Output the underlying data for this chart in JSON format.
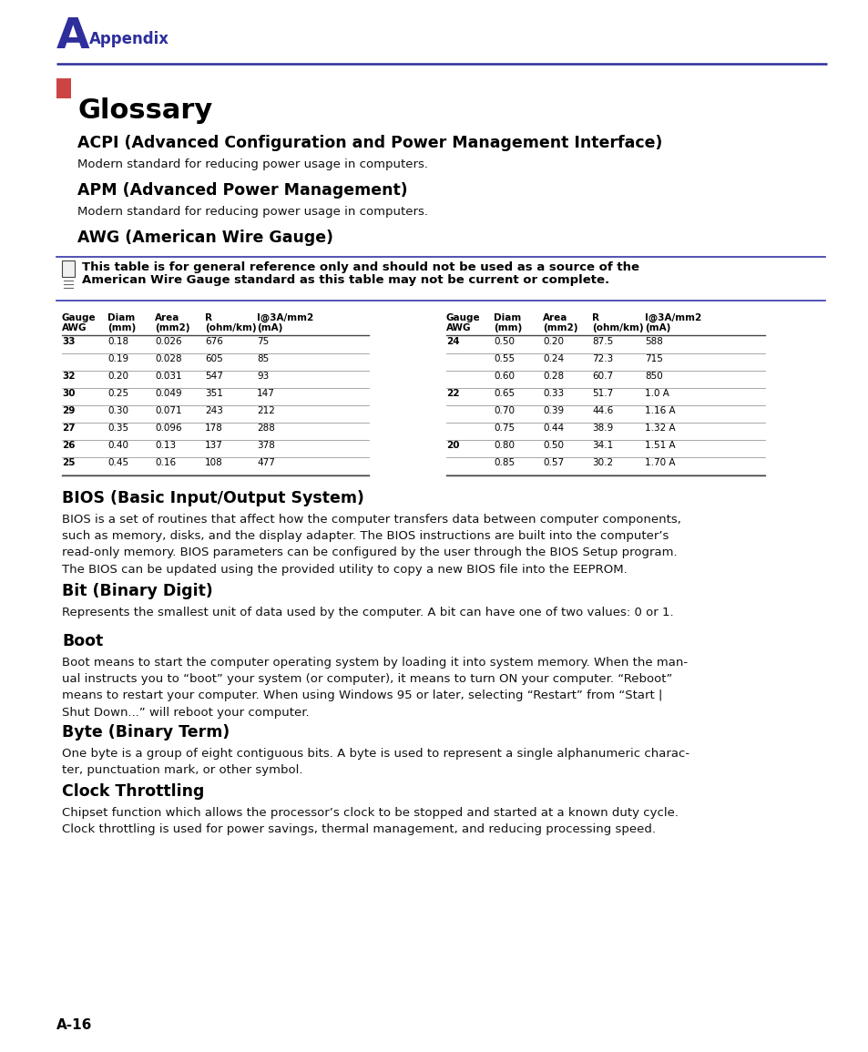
{
  "bg_color": "#ffffff",
  "header_letter": "A",
  "header_text": "Appendix",
  "header_color": "#2e2e9c",
  "glossary_title": "Glossary",
  "sections": [
    {
      "title": "ACPI (Advanced Configuration and Power Management Interface)",
      "body": "Modern standard for reducing power usage in computers."
    },
    {
      "title": "APM (Advanced Power Management)",
      "body": "Modern standard for reducing power usage in computers."
    },
    {
      "title": "AWG (American Wire Gauge)",
      "body": null
    }
  ],
  "note_line1": "This table is for general reference only and should not be used as a source of the",
  "note_line2": "American Wire Gauge standard as this table may not be current or complete.",
  "table_left_headers": [
    "Gauge",
    "Diam",
    "Area",
    "R",
    "I@3A/mm2"
  ],
  "table_left_headers2": [
    "AWG",
    "(mm)",
    "(mm2)",
    "(ohm/km)",
    "(mA)"
  ],
  "table_left_rows": [
    [
      "33",
      "0.18",
      "0.026",
      "676",
      "75"
    ],
    [
      "",
      "0.19",
      "0.028",
      "605",
      "85"
    ],
    [
      "32",
      "0.20",
      "0.031",
      "547",
      "93"
    ],
    [
      "30",
      "0.25",
      "0.049",
      "351",
      "147"
    ],
    [
      "29",
      "0.30",
      "0.071",
      "243",
      "212"
    ],
    [
      "27",
      "0.35",
      "0.096",
      "178",
      "288"
    ],
    [
      "26",
      "0.40",
      "0.13",
      "137",
      "378"
    ],
    [
      "25",
      "0.45",
      "0.16",
      "108",
      "477"
    ]
  ],
  "table_right_headers": [
    "Gauge",
    "Diam",
    "Area",
    "R",
    "I@3A/mm2"
  ],
  "table_right_headers2": [
    "AWG",
    "(mm)",
    "(mm2)",
    "(ohm/km)",
    "(mA)"
  ],
  "table_right_rows": [
    [
      "24",
      "0.50",
      "0.20",
      "87.5",
      "588"
    ],
    [
      "",
      "0.55",
      "0.24",
      "72.3",
      "715"
    ],
    [
      "",
      "0.60",
      "0.28",
      "60.7",
      "850"
    ],
    [
      "22",
      "0.65",
      "0.33",
      "51.7",
      "1.0 A"
    ],
    [
      "",
      "0.70",
      "0.39",
      "44.6",
      "1.16 A"
    ],
    [
      "",
      "0.75",
      "0.44",
      "38.9",
      "1.32 A"
    ],
    [
      "20",
      "0.80",
      "0.50",
      "34.1",
      "1.51 A"
    ],
    [
      "",
      "0.85",
      "0.57",
      "30.2",
      "1.70 A"
    ]
  ],
  "sections2": [
    {
      "title": "BIOS (Basic Input/Output System)",
      "body": "BIOS is a set of routines that affect how the computer transfers data between computer components,\nsuch as memory, disks, and the display adapter. The BIOS instructions are built into the computer’s\nread-only memory. BIOS parameters can be configured by the user through the BIOS Setup program.\nThe BIOS can be updated using the provided utility to copy a new BIOS file into the EEPROM."
    },
    {
      "title": "Bit (Binary Digit)",
      "body": "Represents the smallest unit of data used by the computer. A bit can have one of two values: 0 or 1."
    },
    {
      "title": "Boot",
      "body": "Boot means to start the computer operating system by loading it into system memory. When the man-\nual instructs you to “boot” your system (or computer), it means to turn ON your computer. “Reboot”\nmeans to restart your computer. When using Windows 95 or later, selecting “Restart” from “Start |\nShut Down...” will reboot your computer."
    },
    {
      "title": "Byte (Binary Term)",
      "body": "One byte is a group of eight contiguous bits. A byte is used to represent a single alphanumeric charac-\nter, punctuation mark, or other symbol."
    },
    {
      "title": "Clock Throttling",
      "body": "Chipset function which allows the processor’s clock to be stopped and started at a known duty cycle.\nClock throttling is used for power savings, thermal management, and reducing processing speed."
    }
  ],
  "footer_text": "A-16",
  "dark_color": "#000000",
  "body_color": "#111111",
  "header_color_dark": "#2e2e9c",
  "table_heavy_line": "#444444",
  "table_light_line": "#999999"
}
